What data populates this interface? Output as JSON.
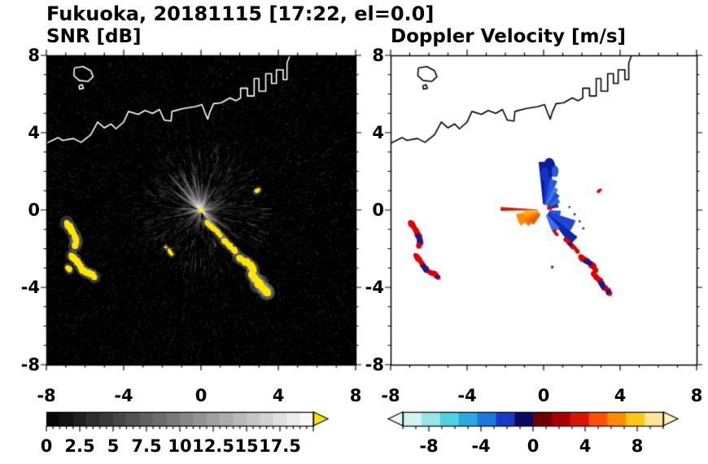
{
  "title": "Fukuoka, 20181115 [17:22, el=0.0]",
  "chart_data": {
    "type": "heatmap",
    "description": "Dual-panel weather radar PPI display (left: signal-to-noise ratio, right: Doppler velocity) for Fukuoka, 2018-11-15 17:22 JST, elevation 0.0 deg",
    "panels": [
      {
        "id": "snr",
        "title": "SNR [dB]",
        "xlim": [
          -8,
          8
        ],
        "ylim": [
          -8,
          8
        ],
        "xticks": [
          -8,
          -4,
          0,
          4,
          8
        ],
        "yticks": [
          8,
          4,
          0,
          -4,
          -8
        ],
        "background": "#000000",
        "coast_color": "#ffffff",
        "colorbar": {
          "style": "grayscale",
          "range": [
            0,
            20
          ],
          "tick_labels": [
            "0",
            "2.5",
            "5",
            "7.5",
            "10",
            "12.5",
            "15",
            "17.5"
          ],
          "tick_values": [
            0,
            2.5,
            5,
            7.5,
            10,
            12.5,
            15,
            17.5
          ],
          "low_color": "#000000",
          "high_color": "#ffffff",
          "over_arrow_color": "#ffe600"
        }
      },
      {
        "id": "doppler",
        "title": "Doppler Velocity [m/s]",
        "xlim": [
          -8,
          8
        ],
        "ylim": [
          -8,
          8
        ],
        "xticks": [
          -8,
          -4,
          0,
          4,
          8
        ],
        "yticks": [
          8,
          4,
          0,
          -4,
          -8
        ],
        "background": "#ffffff",
        "coast_color": "#000000",
        "colorbar": {
          "style": "diverging",
          "range": [
            -10,
            10
          ],
          "tick_labels": [
            "-8",
            "-4",
            "0",
            "4",
            "8"
          ],
          "tick_values": [
            -8,
            -4,
            0,
            4,
            8
          ],
          "neg_colors": [
            "#d2f5f0",
            "#96e6e6",
            "#50d2e6",
            "#28aae0",
            "#1e78dc",
            "#143cc8",
            "#0a0a64"
          ],
          "pos_colors": [
            "#6e0000",
            "#aa0000",
            "#dc1400",
            "#ff5000",
            "#ff8c00",
            "#ffc814",
            "#ffe696"
          ],
          "under_arrow_color": "#e6fafa",
          "over_arrow_color": "#fff5be"
        }
      }
    ],
    "coastline": [
      [
        -8.0,
        3.45
      ],
      [
        -7.4,
        3.75
      ],
      [
        -7.15,
        3.6
      ],
      [
        -6.6,
        3.7
      ],
      [
        -6.2,
        3.5
      ],
      [
        -5.7,
        3.9
      ],
      [
        -5.35,
        4.55
      ],
      [
        -5.0,
        4.25
      ],
      [
        -4.65,
        4.45
      ],
      [
        -4.4,
        4.2
      ],
      [
        -4.0,
        4.55
      ],
      [
        -3.75,
        5.1
      ],
      [
        -3.25,
        4.95
      ],
      [
        -2.9,
        5.15
      ],
      [
        -2.5,
        5.0
      ],
      [
        -2.15,
        5.2
      ],
      [
        -1.9,
        4.65
      ],
      [
        -1.55,
        4.6
      ],
      [
        -1.5,
        5.1
      ],
      [
        -0.9,
        5.25
      ],
      [
        -0.3,
        5.35
      ],
      [
        0.05,
        5.45
      ],
      [
        0.2,
        5.05
      ],
      [
        0.35,
        4.7
      ],
      [
        0.45,
        5.05
      ],
      [
        0.65,
        5.5
      ],
      [
        1.05,
        5.55
      ],
      [
        1.5,
        5.8
      ],
      [
        1.8,
        5.65
      ],
      [
        2.05,
        5.8
      ],
      [
        2.05,
        6.3
      ],
      [
        2.4,
        6.3
      ],
      [
        2.4,
        5.9
      ],
      [
        2.75,
        5.9
      ],
      [
        2.75,
        6.8
      ],
      [
        3.0,
        6.8
      ],
      [
        3.0,
        6.15
      ],
      [
        3.35,
        6.15
      ],
      [
        3.35,
        7.05
      ],
      [
        3.65,
        7.05
      ],
      [
        3.65,
        6.55
      ],
      [
        3.9,
        6.55
      ],
      [
        3.9,
        7.25
      ],
      [
        4.25,
        7.25
      ],
      [
        4.25,
        6.75
      ],
      [
        4.45,
        6.75
      ],
      [
        4.45,
        7.6
      ],
      [
        4.6,
        8.0
      ]
    ],
    "islands": [
      [
        [
          -6.55,
          7.35
        ],
        [
          -6.1,
          7.42
        ],
        [
          -5.7,
          7.2
        ],
        [
          -5.58,
          6.9
        ],
        [
          -5.85,
          6.65
        ],
        [
          -6.3,
          6.7
        ],
        [
          -6.58,
          6.95
        ],
        [
          -6.55,
          7.35
        ]
      ],
      [
        [
          -6.32,
          6.42
        ],
        [
          -6.15,
          6.48
        ],
        [
          -6.08,
          6.3
        ],
        [
          -6.28,
          6.25
        ],
        [
          -6.32,
          6.42
        ]
      ]
    ],
    "snr_echoes": {
      "speckle": {
        "seed": 7,
        "count": 9000,
        "streaks": 2600,
        "inner_streaks": 700,
        "max_radius": 10.7
      },
      "center_color": "#ffd700",
      "blob_color": "#ffe600",
      "beams": [
        [
          96,
          2.0,
          0.5,
          2
        ],
        [
          103,
          2.3,
          0.6,
          2.5
        ],
        [
          110,
          1.6,
          0.4,
          2
        ],
        [
          118,
          2.6,
          0.65,
          3
        ],
        [
          125,
          1.9,
          0.5,
          2
        ],
        [
          132,
          2.8,
          0.7,
          3
        ],
        [
          138,
          1.5,
          0.45,
          2
        ],
        [
          146,
          2.2,
          0.55,
          2.5
        ],
        [
          153,
          1.1,
          0.35,
          2
        ],
        [
          88,
          1.7,
          0.5,
          2
        ],
        [
          81,
          1.3,
          0.4,
          2
        ],
        [
          73,
          1.8,
          0.5,
          2.5
        ],
        [
          65,
          1.1,
          0.35,
          2
        ],
        [
          58,
          1.5,
          0.45,
          2
        ],
        [
          48,
          0.8,
          0.3,
          2
        ],
        [
          38,
          0.9,
          0.35,
          2
        ],
        [
          30,
          1.1,
          0.4,
          2
        ],
        [
          18,
          1.3,
          0.45,
          2
        ],
        [
          8,
          1.0,
          0.4,
          2
        ],
        [
          1,
          1.2,
          0.45,
          2
        ],
        [
          352,
          0.9,
          0.35,
          2
        ],
        [
          305,
          1.8,
          0.5,
          2.5
        ],
        [
          312,
          2.3,
          0.6,
          2.5
        ],
        [
          318,
          1.4,
          0.4,
          2
        ],
        [
          325,
          2.0,
          0.55,
          2.5
        ],
        [
          333,
          1.2,
          0.4,
          2
        ],
        [
          341,
          0.8,
          0.3,
          2
        ],
        [
          262,
          0.9,
          0.3,
          2
        ],
        [
          251,
          1.2,
          0.35,
          2
        ],
        [
          241,
          0.7,
          0.25,
          2
        ],
        [
          230,
          1.0,
          0.3,
          2
        ],
        [
          176,
          1.4,
          0.45,
          2
        ],
        [
          184,
          1.0,
          0.35,
          2
        ],
        [
          193,
          1.6,
          0.45,
          2.5
        ],
        [
          201,
          0.8,
          0.3,
          2
        ],
        [
          214,
          1.1,
          0.35,
          2
        ],
        [
          223,
          1.3,
          0.4,
          2
        ]
      ],
      "chains": [
        {
          "pts": [
            [
              -6.95,
              -0.65
            ],
            [
              -6.75,
              -0.95
            ],
            [
              -6.55,
              -1.3
            ],
            [
              -6.45,
              -1.6
            ],
            [
              -6.52,
              -1.85
            ]
          ],
          "r": 0.17
        },
        {
          "pts": [
            [
              -6.7,
              -2.35
            ],
            [
              -6.5,
              -2.55
            ],
            [
              -6.3,
              -2.85
            ],
            [
              -6.12,
              -3.1
            ],
            [
              -5.92,
              -3.25
            ],
            [
              -5.68,
              -3.3
            ],
            [
              -5.52,
              -3.48
            ]
          ],
          "r": 0.15
        },
        {
          "pts": [
            [
              -6.88,
              -2.95
            ],
            [
              -6.8,
              -3.12
            ]
          ],
          "r": 0.11
        },
        {
          "pts": [
            [
              0.28,
              -0.62
            ],
            [
              0.52,
              -0.85
            ],
            [
              0.78,
              -1.08
            ],
            [
              1.0,
              -1.32
            ]
          ],
          "r": 0.12
        },
        {
          "pts": [
            [
              1.18,
              -1.55
            ],
            [
              1.38,
              -1.75
            ],
            [
              1.58,
              -1.95
            ],
            [
              1.78,
              -2.15
            ]
          ],
          "r": 0.13
        },
        {
          "pts": [
            [
              1.95,
              -2.45
            ],
            [
              2.18,
              -2.6
            ],
            [
              2.42,
              -2.75
            ],
            [
              2.62,
              -2.92
            ],
            [
              2.72,
              -3.12
            ]
          ],
          "r": 0.16
        },
        {
          "pts": [
            [
              2.62,
              -3.32
            ],
            [
              2.78,
              -3.52
            ],
            [
              2.98,
              -3.72
            ],
            [
              3.12,
              -3.95
            ],
            [
              3.32,
              -4.12
            ],
            [
              3.45,
              -4.3
            ]
          ],
          "r": 0.17
        },
        {
          "pts": [
            [
              3.0,
              -3.82
            ]
          ],
          "r": 0.24
        },
        {
          "pts": [
            [
              3.38,
              -4.22
            ]
          ],
          "r": 0.21
        },
        {
          "pts": [
            [
              2.85,
              0.95
            ],
            [
              2.98,
              1.05
            ]
          ],
          "r": 0.09
        },
        {
          "pts": [
            [
              -1.65,
              -2.08
            ],
            [
              -1.52,
              -2.28
            ]
          ],
          "r": 0.09
        },
        {
          "pts": [
            [
              -1.82,
              -1.92
            ]
          ],
          "r": 0.07
        }
      ]
    },
    "doppler_echoes": {
      "center_dot_color": "#ffffff",
      "wedges": [
        [
          84,
          96,
          0.3,
          2.5,
          "#0a1e9b"
        ],
        [
          75,
          88,
          0.28,
          2.0,
          "#1432c8"
        ],
        [
          64,
          78,
          0.28,
          1.65,
          "#2858e0"
        ],
        [
          54,
          66,
          0.3,
          1.3,
          "#3c78f0"
        ],
        [
          40,
          56,
          0.28,
          1.1,
          "#1e4fd2"
        ],
        [
          24,
          42,
          0.3,
          0.95,
          "#2d62e0"
        ],
        [
          10,
          26,
          0.3,
          0.8,
          "#1432b4"
        ],
        [
          -20,
          -2,
          0.3,
          0.9,
          "#2d55dc"
        ],
        [
          -45,
          -18,
          0.28,
          1.75,
          "#1e46d2"
        ],
        [
          -52,
          -38,
          0.3,
          2.25,
          "#0f28aa"
        ],
        [
          -68,
          -48,
          0.3,
          1.25,
          "#3c6ef0"
        ],
        [
          188,
          214,
          0.3,
          1.45,
          "#ff9100"
        ],
        [
          204,
          226,
          0.28,
          1.15,
          "#ff7300"
        ],
        [
          214,
          236,
          0.3,
          0.92,
          "#e65a00"
        ],
        [
          182,
          196,
          0.3,
          1.05,
          "#ffb000"
        ],
        [
          176,
          181,
          0.3,
          2.25,
          "#dc1400"
        ],
        [
          2,
          40,
          0.2,
          0.45,
          "#c81400"
        ]
      ],
      "ellipses": [
        [
          0.3,
          2.2,
          0.32,
          0.5,
          "#0a1e9b"
        ],
        [
          0.05,
          1.85,
          0.22,
          0.35,
          "#1432c8"
        ],
        [
          0.6,
          2.0,
          0.18,
          0.3,
          "#2858e0"
        ]
      ],
      "chains": [
        {
          "pts": [
            [
              -6.95,
              -0.65
            ],
            [
              -6.75,
              -0.95
            ],
            [
              -6.55,
              -1.3
            ],
            [
              -6.45,
              -1.6
            ],
            [
              -6.52,
              -1.85
            ]
          ],
          "r": 0.15,
          "color": "#dc0000"
        },
        {
          "pts": [
            [
              -6.55,
              -1.35
            ],
            [
              -6.45,
              -1.62
            ]
          ],
          "r": 0.13,
          "color": "#0f1e96"
        },
        {
          "pts": [
            [
              -6.7,
              -2.35
            ],
            [
              -6.5,
              -2.55
            ],
            [
              -6.3,
              -2.85
            ],
            [
              -6.12,
              -3.1
            ],
            [
              -5.92,
              -3.25
            ],
            [
              -5.68,
              -3.3
            ],
            [
              -5.52,
              -3.48
            ]
          ],
          "r": 0.13,
          "color": "#dc0000"
        },
        {
          "pts": [
            [
              -6.3,
              -2.87
            ],
            [
              -6.12,
              -3.12
            ]
          ],
          "r": 0.11,
          "color": "#0f1e96"
        },
        {
          "pts": [
            [
              -5.55,
              -3.46
            ]
          ],
          "r": 0.1,
          "color": "#0f1e96"
        },
        {
          "pts": [
            [
              0.55,
              -1.1
            ],
            [
              0.7,
              -1.27
            ]
          ],
          "r": 0.08,
          "color": "#dc0000"
        },
        {
          "pts": [
            [
              1.18,
              -1.55
            ],
            [
              1.38,
              -1.75
            ],
            [
              1.58,
              -1.95
            ],
            [
              1.78,
              -2.15
            ]
          ],
          "r": 0.11,
          "color": "#dc0000"
        },
        {
          "pts": [
            [
              1.38,
              -1.77
            ]
          ],
          "r": 0.1,
          "color": "#0f1e96"
        },
        {
          "pts": [
            [
              1.95,
              -2.45
            ],
            [
              2.18,
              -2.6
            ],
            [
              2.42,
              -2.75
            ],
            [
              2.62,
              -2.92
            ],
            [
              2.72,
              -3.12
            ]
          ],
          "r": 0.14,
          "color": "#dc0000"
        },
        {
          "pts": [
            [
              2.18,
              -2.62
            ],
            [
              2.42,
              -2.77
            ]
          ],
          "r": 0.12,
          "color": "#0f1e96"
        },
        {
          "pts": [
            [
              2.62,
              -3.32
            ],
            [
              2.78,
              -3.52
            ],
            [
              2.98,
              -3.72
            ],
            [
              3.12,
              -3.95
            ],
            [
              3.32,
              -4.12
            ],
            [
              3.45,
              -4.3
            ]
          ],
          "r": 0.14,
          "color": "#dc0000"
        },
        {
          "pts": [
            [
              2.98,
              -3.74
            ],
            [
              3.12,
              -3.97
            ]
          ],
          "r": 0.12,
          "color": "#0f1e96"
        },
        {
          "pts": [
            [
              3.38,
              -4.22
            ]
          ],
          "r": 0.12,
          "color": "#0f1e96"
        },
        {
          "pts": [
            [
              2.85,
              0.95
            ],
            [
              2.98,
              1.05
            ]
          ],
          "r": 0.07,
          "color": "#dc0000"
        }
      ],
      "dots": [
        [
          0.45,
          -2.95,
          0.08,
          "#8c1e8c"
        ],
        [
          1.35,
          0.15,
          0.06,
          "#2850d2"
        ],
        [
          1.62,
          -0.22,
          0.06,
          "#1432b4"
        ],
        [
          1.88,
          -0.58,
          0.07,
          "#2850d2"
        ],
        [
          2.08,
          -0.95,
          0.06,
          "#0f28aa"
        ]
      ]
    }
  }
}
